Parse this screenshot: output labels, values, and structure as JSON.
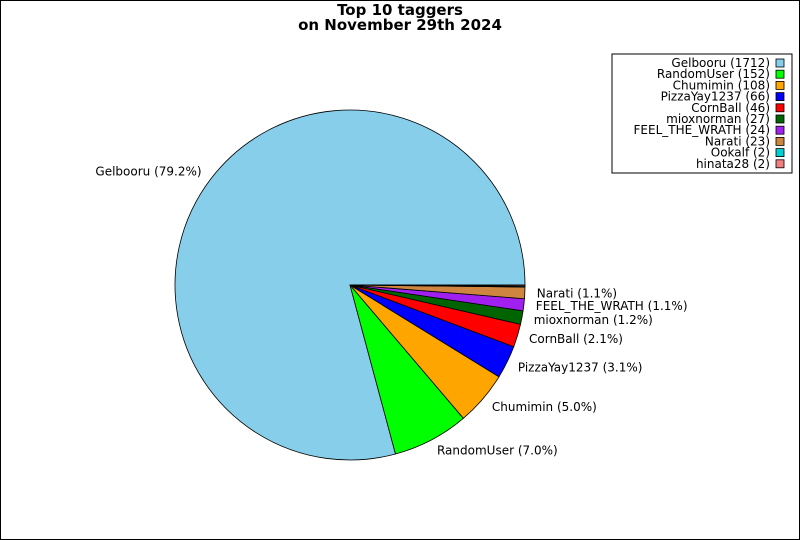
{
  "chart_data": {
    "type": "pie",
    "title": "Top 10 taggers",
    "subtitle": "on November 29th 2024",
    "legend_position": "top-right",
    "slices": [
      {
        "name": "Gelbooru",
        "value": 1712,
        "percent_label": "Gelbooru (79.2%)",
        "legend_label": "Gelbooru (1712)",
        "color": "#87ceeb"
      },
      {
        "name": "RandomUser",
        "value": 152,
        "percent_label": "RandomUser (7.0%)",
        "legend_label": "RandomUser (152)",
        "color": "#00ff00"
      },
      {
        "name": "Chumimin",
        "value": 108,
        "percent_label": "Chumimin (5.0%)",
        "legend_label": "Chumimin (108)",
        "color": "#ffa500"
      },
      {
        "name": "PizzaYay1237",
        "value": 66,
        "percent_label": "PizzaYay1237 (3.1%)",
        "legend_label": "PizzaYay1237 (66)",
        "color": "#0000ff"
      },
      {
        "name": "CornBall",
        "value": 46,
        "percent_label": "CornBall (2.1%)",
        "legend_label": "CornBall (46)",
        "color": "#ff0000"
      },
      {
        "name": "mioxnorman",
        "value": 27,
        "percent_label": "mioxnorman (1.2%)",
        "legend_label": "mioxnorman (27)",
        "color": "#006400"
      },
      {
        "name": "FEEL_THE_WRATH",
        "value": 24,
        "percent_label": "FEEL_THE_WRATH (1.1%)",
        "legend_label": "FEEL_THE_WRATH (24)",
        "color": "#a020f0"
      },
      {
        "name": "Narati",
        "value": 23,
        "percent_label": "Narati (1.1%)",
        "legend_label": "Narati (23)",
        "color": "#cd853f"
      },
      {
        "name": "Ookalf",
        "value": 2,
        "percent_label": "",
        "legend_label": "Ookalf (2)",
        "color": "#00ced1"
      },
      {
        "name": "hinata28",
        "value": 2,
        "percent_label": "",
        "legend_label": "hinata28 (2)",
        "color": "#f08080"
      }
    ]
  }
}
